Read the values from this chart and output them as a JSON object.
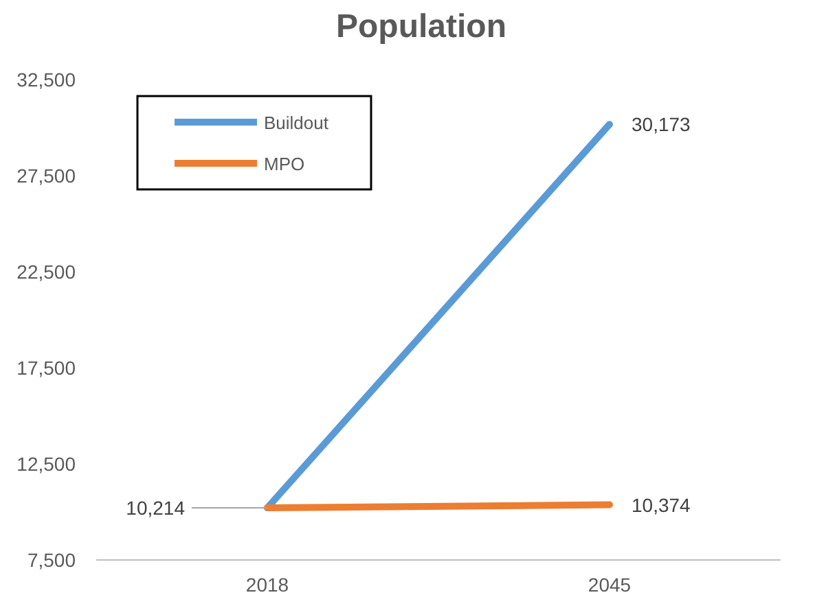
{
  "chart_data": {
    "type": "line",
    "title": "Population",
    "categories": [
      "2018",
      "2045"
    ],
    "series": [
      {
        "name": "Buildout",
        "color": "#5b9bd5",
        "values": [
          10214,
          30173
        ],
        "value_labels": [
          "10,214",
          "30,173"
        ]
      },
      {
        "name": "MPO",
        "color": "#ed7d31",
        "values": [
          10214,
          10374
        ],
        "value_labels": [
          null,
          "10,374"
        ]
      }
    ],
    "ylim": [
      7500,
      32500
    ],
    "yticks": [
      {
        "value": 7500,
        "label": "7,500"
      },
      {
        "value": 12500,
        "label": "12,500"
      },
      {
        "value": 17500,
        "label": "17,500"
      },
      {
        "value": 22500,
        "label": "22,500"
      },
      {
        "value": 27500,
        "label": "27,500"
      },
      {
        "value": 32500,
        "label": "32,500"
      }
    ],
    "grid": false,
    "legend": "top left",
    "marker": "none",
    "line_style": "solid"
  }
}
